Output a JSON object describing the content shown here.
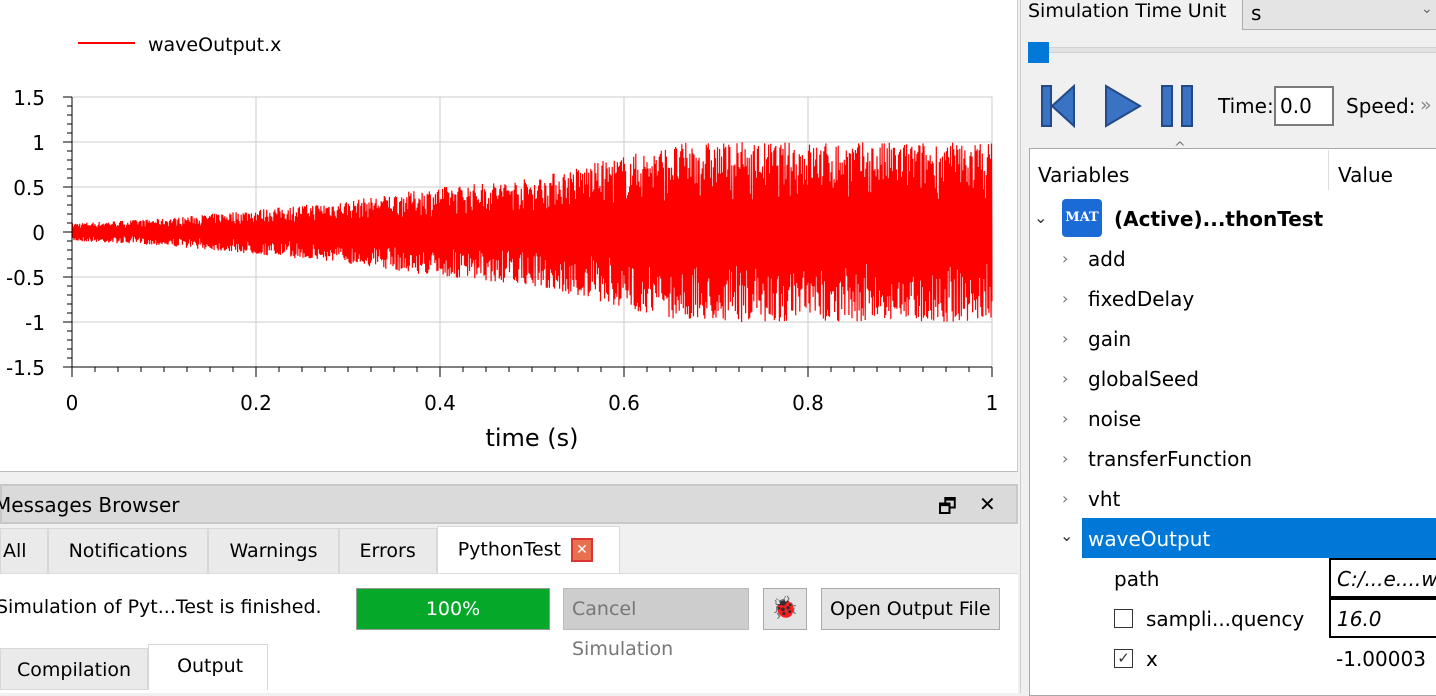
{
  "chart_data": {
    "type": "line",
    "legend": [
      "waveOutput.x"
    ],
    "legend_placement": "top-left",
    "xlabel": "time (s)",
    "ylabel": "",
    "xlim": [
      0,
      1
    ],
    "ylim": [
      -1.5,
      1.5
    ],
    "xticks": [
      "0",
      "0.2",
      "0.4",
      "0.6",
      "0.8",
      "1"
    ],
    "yticks": [
      "1.5",
      "1",
      "0.5",
      "0",
      "-0.5",
      "-1",
      "-1.5"
    ],
    "grid": true,
    "series": [
      {
        "name": "waveOutput.x",
        "color": "#ff0000",
        "description_envelope_time": [
          0,
          0.1,
          0.2,
          0.3,
          0.4,
          0.5,
          0.6,
          0.67,
          0.8,
          1.0
        ],
        "amplitude": [
          0.1,
          0.15,
          0.25,
          0.35,
          0.5,
          0.6,
          0.85,
          1.0,
          1.0,
          1.0
        ]
      }
    ]
  },
  "messages": {
    "title": "Messages Browser",
    "tabs": [
      "All",
      "Notifications",
      "Warnings",
      "Errors",
      "PythonTest"
    ],
    "status": "Simulation of Pyt...Test is finished.",
    "progress_label": "100%",
    "progress": 100,
    "cancel_label": "Cancel Simulation",
    "open_output_label": "Open Output File",
    "subtabs": [
      "Compilation",
      "Output"
    ]
  },
  "right": {
    "time_unit_label": "Simulation Time Unit",
    "time_unit_value": "s",
    "time_label": "Time:",
    "time_value": "0.0",
    "speed_label": "Speed:",
    "speed_more": "»",
    "col_variables": "Variables",
    "col_value": "Value",
    "root": "(Active)...thonTest",
    "root_icon": "MAT",
    "items": [
      "add",
      "fixedDelay",
      "gain",
      "globalSeed",
      "noise",
      "transferFunction",
      "vht",
      "waveOutput"
    ],
    "children": [
      {
        "name": "path",
        "value": "C:/...e....wo"
      },
      {
        "name": "sampli...quency",
        "value": "16.0",
        "checked": false
      },
      {
        "name": "x",
        "value": "-1.00003",
        "checked": true
      }
    ],
    "selected_color": "#0078d7"
  }
}
